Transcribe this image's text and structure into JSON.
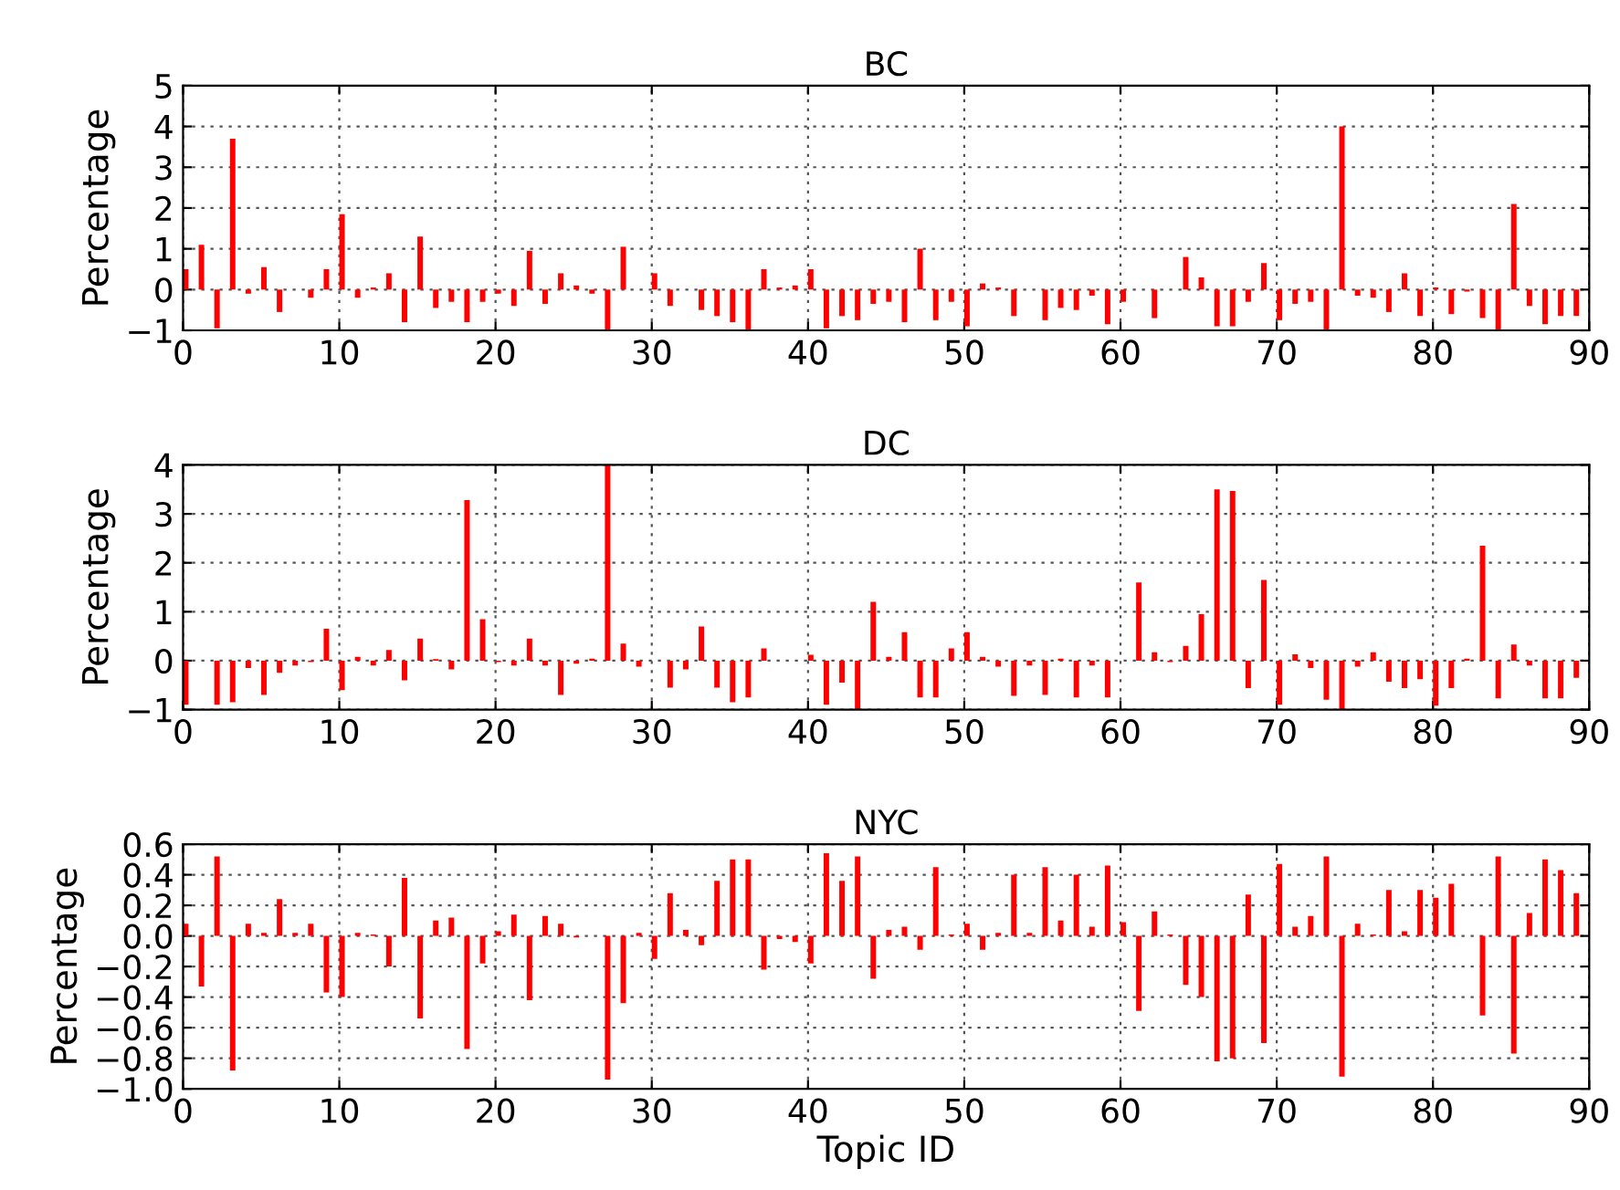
{
  "chart_data": [
    {
      "type": "bar",
      "title": "BC",
      "ylabel": "Percentage",
      "color": "#ff0000",
      "grid": true,
      "x": [
        0,
        1,
        2,
        3,
        4,
        5,
        6,
        7,
        8,
        9,
        10,
        11,
        12,
        13,
        14,
        15,
        16,
        17,
        18,
        19,
        20,
        21,
        22,
        23,
        24,
        25,
        26,
        27,
        28,
        29,
        30,
        31,
        32,
        33,
        34,
        35,
        36,
        37,
        38,
        39,
        40,
        41,
        42,
        43,
        44,
        45,
        46,
        47,
        48,
        49,
        50,
        51,
        52,
        53,
        54,
        55,
        56,
        57,
        58,
        59,
        60,
        61,
        62,
        63,
        64,
        65,
        66,
        67,
        68,
        69,
        70,
        71,
        72,
        73,
        74,
        75,
        76,
        77,
        78,
        79,
        80,
        81,
        82,
        83,
        84,
        85,
        86,
        87,
        88,
        89
      ],
      "values": [
        0.5,
        1.1,
        -0.95,
        3.7,
        -0.1,
        0.55,
        -0.55,
        0,
        -0.2,
        0.5,
        1.85,
        -0.2,
        0.05,
        0.4,
        -0.8,
        1.3,
        -0.45,
        -0.3,
        -0.8,
        -0.3,
        -0.1,
        -0.4,
        0.95,
        -0.35,
        0.4,
        0.1,
        -0.1,
        -1,
        1.05,
        0,
        0.4,
        -0.4,
        0,
        -0.5,
        -0.65,
        -0.8,
        -1,
        0.5,
        0.05,
        0.1,
        0.5,
        -0.95,
        -0.65,
        -0.75,
        -0.35,
        -0.3,
        -0.8,
        1.0,
        -0.75,
        -0.3,
        -0.9,
        0.15,
        0.05,
        -0.65,
        0,
        -0.75,
        -0.45,
        -0.5,
        -0.15,
        -0.85,
        -0.3,
        0,
        -0.7,
        0,
        0.8,
        0.3,
        -0.9,
        -0.9,
        -0.3,
        0.65,
        -0.75,
        -0.35,
        -0.3,
        -1,
        4.0,
        -0.15,
        -0.2,
        -0.55,
        0.4,
        -0.65,
        0.05,
        -0.6,
        -0.05,
        -0.7,
        -1,
        2.1,
        -0.4,
        -0.85,
        -0.65,
        -0.65
      ],
      "xlim": [
        0,
        90
      ],
      "xticks": [
        0,
        10,
        20,
        30,
        40,
        50,
        60,
        70,
        80,
        90
      ],
      "ylim": [
        -1,
        5
      ],
      "yticks": [
        {
          "value": -1,
          "label": "−1"
        },
        0,
        1,
        2,
        3,
        4,
        5
      ]
    },
    {
      "type": "bar",
      "title": "DC",
      "ylabel": "Percentage",
      "color": "#ff0000",
      "grid": true,
      "x": [
        0,
        1,
        2,
        3,
        4,
        5,
        6,
        7,
        8,
        9,
        10,
        11,
        12,
        13,
        14,
        15,
        16,
        17,
        18,
        19,
        20,
        21,
        22,
        23,
        24,
        25,
        26,
        27,
        28,
        29,
        30,
        31,
        32,
        33,
        34,
        35,
        36,
        37,
        38,
        39,
        40,
        41,
        42,
        43,
        44,
        45,
        46,
        47,
        48,
        49,
        50,
        51,
        52,
        53,
        54,
        55,
        56,
        57,
        58,
        59,
        60,
        61,
        62,
        63,
        64,
        65,
        66,
        67,
        68,
        69,
        70,
        71,
        72,
        73,
        74,
        75,
        76,
        77,
        78,
        79,
        80,
        81,
        82,
        83,
        84,
        85,
        86,
        87,
        88,
        89
      ],
      "values": [
        -0.9,
        0,
        -0.9,
        -0.85,
        -0.15,
        -0.7,
        -0.25,
        -0.1,
        -0.03,
        0.65,
        -0.6,
        0.08,
        -0.1,
        0.22,
        -0.4,
        0.45,
        0.03,
        -0.18,
        3.28,
        0.85,
        -0.03,
        -0.1,
        0.45,
        -0.1,
        -0.7,
        -0.06,
        0.04,
        4.0,
        0.35,
        -0.12,
        0,
        -0.55,
        -0.18,
        0.7,
        -0.55,
        -0.85,
        -0.75,
        0.25,
        0,
        0,
        0.12,
        -0.9,
        -0.45,
        -1,
        1.2,
        0.08,
        0.58,
        -0.75,
        -0.75,
        0.25,
        0.58,
        0.08,
        -0.12,
        -0.72,
        -0.1,
        -0.7,
        0.04,
        -0.75,
        -0.1,
        -0.75,
        0,
        1.6,
        0.17,
        -0.03,
        0.3,
        0.95,
        3.5,
        3.47,
        -0.56,
        1.65,
        -0.9,
        0.13,
        -0.15,
        -0.8,
        -1.0,
        -0.12,
        0.17,
        -0.43,
        -0.56,
        -0.38,
        -0.92,
        -0.56,
        0.04,
        2.35,
        -0.77,
        0.33,
        -0.1,
        -0.77,
        -0.77,
        -0.35
      ],
      "xlim": [
        0,
        90
      ],
      "xticks": [
        0,
        10,
        20,
        30,
        40,
        50,
        60,
        70,
        80,
        90
      ],
      "ylim": [
        -1,
        4
      ],
      "yticks": [
        {
          "value": -1,
          "label": "−1"
        },
        0,
        1,
        2,
        3,
        4
      ]
    },
    {
      "type": "bar",
      "title": "NYC",
      "ylabel": "Percentage",
      "xlabel": "Topic ID",
      "color": "#ff0000",
      "grid": true,
      "x": [
        0,
        1,
        2,
        3,
        4,
        5,
        6,
        7,
        8,
        9,
        10,
        11,
        12,
        13,
        14,
        15,
        16,
        17,
        18,
        19,
        20,
        21,
        22,
        23,
        24,
        25,
        26,
        27,
        28,
        29,
        30,
        31,
        32,
        33,
        34,
        35,
        36,
        37,
        38,
        39,
        40,
        41,
        42,
        43,
        44,
        45,
        46,
        47,
        48,
        49,
        50,
        51,
        52,
        53,
        54,
        55,
        56,
        57,
        58,
        59,
        60,
        61,
        62,
        63,
        64,
        65,
        66,
        67,
        68,
        69,
        70,
        71,
        72,
        73,
        74,
        75,
        76,
        77,
        78,
        79,
        80,
        81,
        82,
        83,
        84,
        85,
        86,
        87,
        88,
        89
      ],
      "values": [
        0.08,
        -0.33,
        0.52,
        -0.88,
        0.08,
        0.02,
        0.24,
        0.02,
        0.08,
        -0.37,
        -0.4,
        0.02,
        0.01,
        -0.2,
        0.38,
        -0.54,
        0.1,
        0.12,
        -0.74,
        -0.18,
        0.03,
        0.14,
        -0.42,
        0.13,
        0.08,
        -0.01,
        0,
        -0.94,
        -0.44,
        0.02,
        -0.15,
        0.28,
        0.04,
        -0.06,
        0.36,
        0.5,
        0.5,
        -0.22,
        -0.02,
        -0.04,
        -0.18,
        0.54,
        0.36,
        0.52,
        -0.28,
        0.04,
        0.06,
        -0.09,
        0.45,
        0.01,
        0.08,
        -0.09,
        0.02,
        0.4,
        0.02,
        0.45,
        0.1,
        0.4,
        0.06,
        0.46,
        0.09,
        -0.49,
        0.16,
        0.01,
        -0.32,
        -0.4,
        -0.82,
        -0.8,
        0.27,
        -0.7,
        0.47,
        0.06,
        0.13,
        0.52,
        -0.92,
        0.08,
        0.01,
        0.3,
        0.03,
        0.3,
        0.25,
        0.34,
        0,
        -0.52,
        0.52,
        -0.77,
        0.15,
        0.5,
        0.43,
        0.28
      ],
      "xlim": [
        0,
        90
      ],
      "xticks": [
        0,
        10,
        20,
        30,
        40,
        50,
        60,
        70,
        80,
        90
      ],
      "ylim": [
        -1.0,
        0.6
      ],
      "yticks": [
        {
          "value": -1.0,
          "label": "−1.0"
        },
        {
          "value": -0.8,
          "label": "−0.8"
        },
        {
          "value": -0.6,
          "label": "−0.6"
        },
        {
          "value": -0.4,
          "label": "−0.4"
        },
        {
          "value": -0.2,
          "label": "−0.2"
        },
        {
          "value": 0,
          "label": "0.0"
        },
        {
          "value": 0.2,
          "label": "0.2"
        },
        {
          "value": 0.4,
          "label": "0.4"
        },
        {
          "value": 0.6,
          "label": "0.6"
        }
      ]
    }
  ]
}
